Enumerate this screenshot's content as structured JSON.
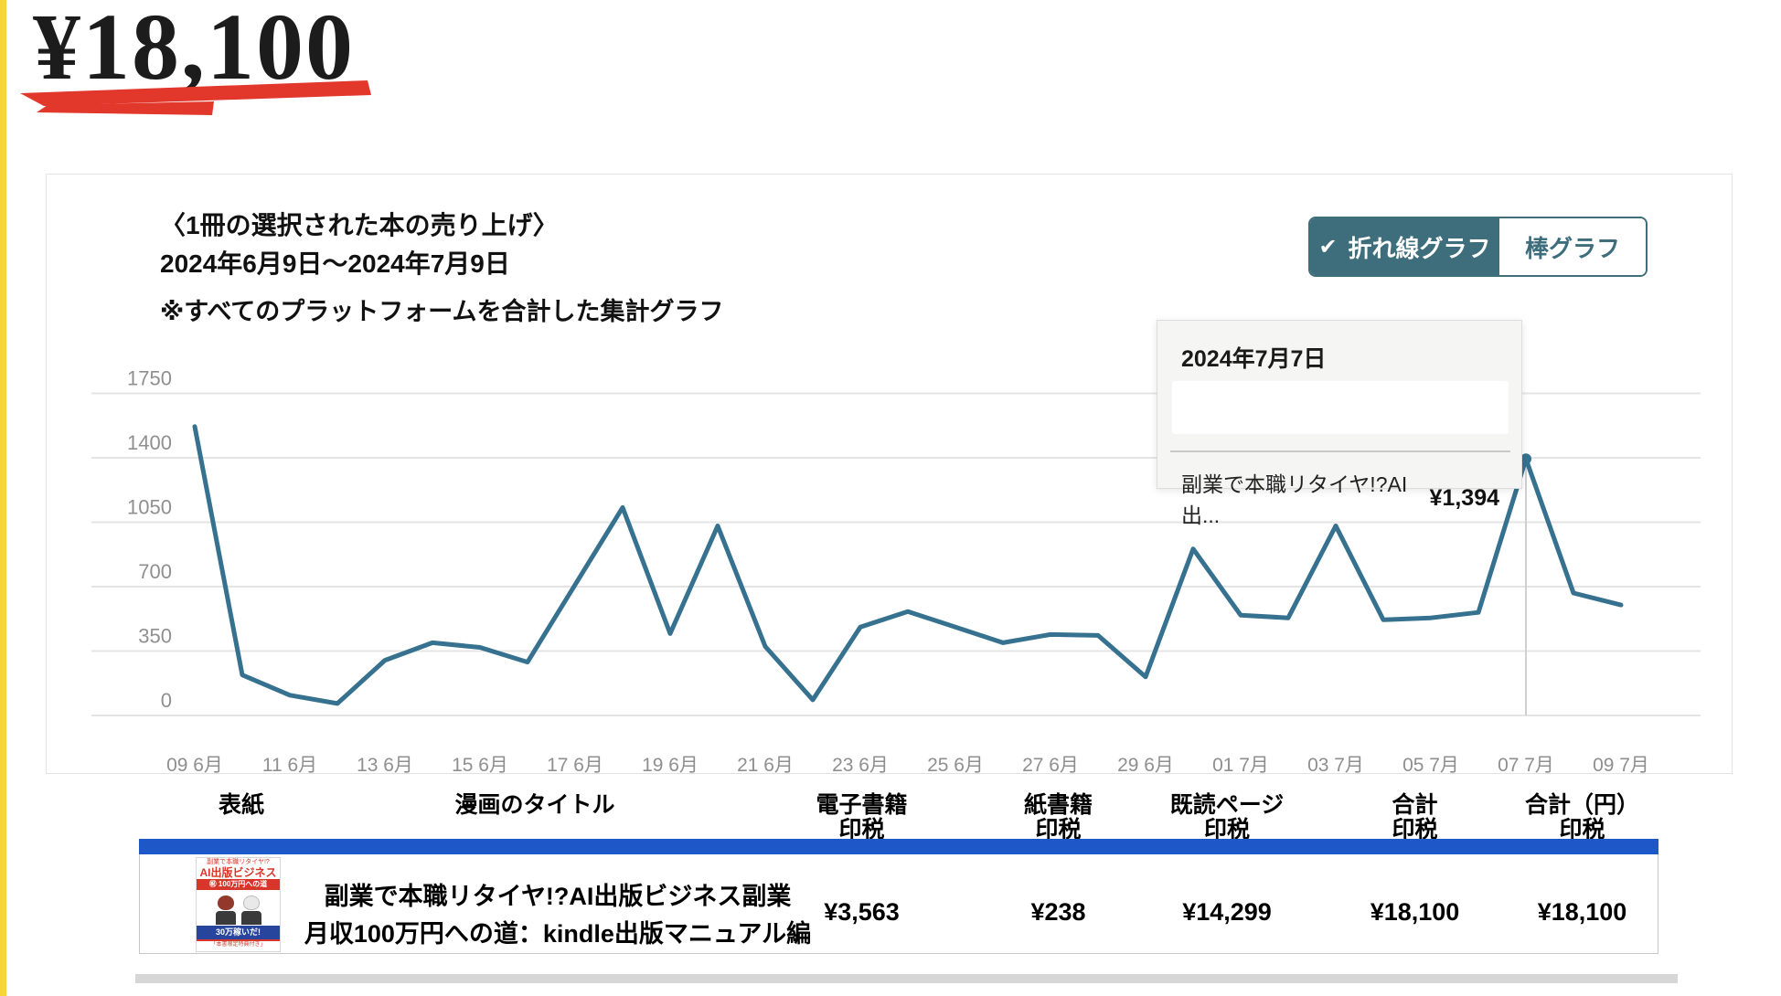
{
  "page": {
    "headline_amount": "¥18,100",
    "accent_yellow": "#f6d43c",
    "marker_red": "#e2372b"
  },
  "chart_panel": {
    "title": "〈1冊の選択された本の売り上げ〉",
    "date_range": "2024年6月9日〜2024年7月9日",
    "note": "※すべてのプラットフォームを合計した集計グラフ",
    "toggle": {
      "check_icon": "✔",
      "line_label": "折れ線グラフ",
      "bar_label": "棒グラフ",
      "selected": "line",
      "teal": "#3e6d7c"
    },
    "tooltip": {
      "date": "2024年7月7日",
      "series_label": "副業で本職リタイヤ!?AI出...",
      "value": "¥1,394"
    }
  },
  "chart_data": {
    "type": "line",
    "title": "1冊の選択された本の売り上げ（全プラットフォーム合計）",
    "x": [
      "6/9",
      "6/10",
      "6/11",
      "6/12",
      "6/13",
      "6/14",
      "6/15",
      "6/16",
      "6/17",
      "6/18",
      "6/19",
      "6/20",
      "6/21",
      "6/22",
      "6/23",
      "6/24",
      "6/25",
      "6/26",
      "6/27",
      "6/28",
      "6/29",
      "6/30",
      "7/1",
      "7/2",
      "7/3",
      "7/4",
      "7/5",
      "7/6",
      "7/7",
      "7/8",
      "7/9"
    ],
    "values": [
      1570,
      220,
      110,
      65,
      300,
      395,
      370,
      290,
      710,
      1130,
      445,
      1030,
      375,
      85,
      480,
      565,
      480,
      395,
      440,
      435,
      210,
      905,
      545,
      530,
      1030,
      520,
      530,
      560,
      1394,
      665,
      600
    ],
    "x_tick_labels": [
      "09 6月",
      "11 6月",
      "13 6月",
      "15 6月",
      "17 6月",
      "19 6月",
      "21 6月",
      "23 6月",
      "25 6月",
      "27 6月",
      "29 6月",
      "01 7月",
      "03 7月",
      "05 7月",
      "07 7月",
      "09 7月"
    ],
    "yticks": [
      0,
      350,
      700,
      1050,
      1400,
      1750
    ],
    "ylim": [
      0,
      1750
    ],
    "grid": true,
    "line_color": "#36718f",
    "grid_color": "#e4e4e4",
    "axis_label_color": "#8f8f8f",
    "highlight": {
      "index": 28,
      "date": "2024年7月7日",
      "value": 1394
    }
  },
  "table": {
    "headers": [
      {
        "line1": "表紙",
        "line2": ""
      },
      {
        "line1": "漫画のタイトル",
        "line2": ""
      },
      {
        "line1": "電子書籍",
        "line2": "印税"
      },
      {
        "line1": "紙書籍",
        "line2": "印税"
      },
      {
        "line1": "既読ページ",
        "line2": "印税"
      },
      {
        "line1": "合計",
        "line2": "印税"
      },
      {
        "line1": "合計（円）",
        "line2": "印税"
      }
    ],
    "header_bar_color": "#1e58c8",
    "row": {
      "title_line1": "副業で本職リタイヤ!?AI出版ビジネス副業",
      "title_line2": "月収100万円への道：kindle出版マニュアル編",
      "ebook_royalty": "¥3,563",
      "paper_royalty": "¥238",
      "pages_read_royalty": "¥14,299",
      "total_royalty": "¥18,100",
      "total_yen_royalty": "¥18,100",
      "cover": {
        "top_text": "副業で本職リタイヤ!?",
        "title_text": "AI出版ビジネス",
        "band_text": "㊗ 100万円への道",
        "blue_text": "30万稼いだ!",
        "foot_text": "「本書限定特典付き」"
      }
    }
  }
}
